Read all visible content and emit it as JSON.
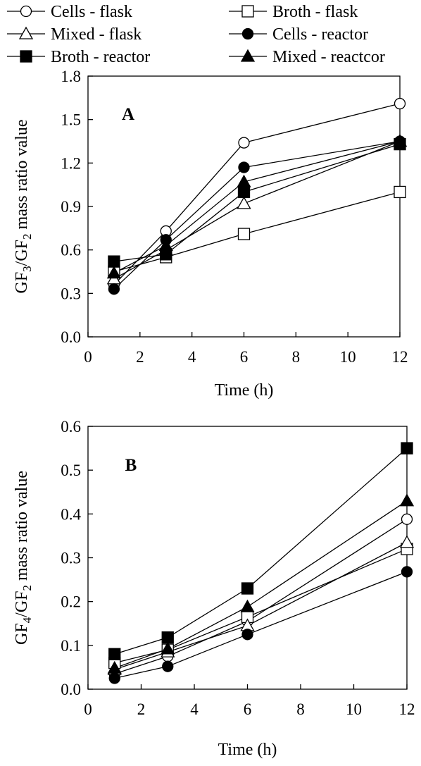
{
  "legend": {
    "entries": [
      {
        "label": "Cells - flask",
        "marker": "circle",
        "filled": false
      },
      {
        "label": "Broth - flask",
        "marker": "square",
        "filled": false
      },
      {
        "label": "Mixed - flask",
        "marker": "triangle",
        "filled": false
      },
      {
        "label": "Cells - reactor",
        "marker": "circle",
        "filled": true
      },
      {
        "label": "Broth - reactor",
        "marker": "square",
        "filled": true
      },
      {
        "label": "Mixed - reactcor",
        "marker": "triangle",
        "filled": true
      }
    ]
  },
  "chart_data": [
    {
      "type": "line",
      "panel_label": "A",
      "ylabel_parts": [
        "GF",
        "3",
        "/GF",
        "2",
        " mass ratio value"
      ],
      "xlabel": "Time (h)",
      "xlim": [
        0,
        12
      ],
      "ylim": [
        0,
        1.8
      ],
      "xticks": [
        0,
        2,
        4,
        6,
        8,
        10,
        12
      ],
      "xtick_labels": [
        "0",
        "2",
        "4",
        "6",
        "8",
        "10",
        "12"
      ],
      "yticks": [
        0,
        0.3,
        0.6,
        0.9,
        1.2,
        1.5,
        1.8
      ],
      "ytick_labels": [
        "0.0",
        "0.3",
        "0.6",
        "0.9",
        "1.2",
        "1.5",
        "1.8"
      ],
      "grid": false,
      "x": [
        1,
        3,
        6,
        12
      ],
      "series": [
        {
          "name": "Cells - flask",
          "values": [
            0.36,
            0.73,
            1.34,
            1.61
          ]
        },
        {
          "name": "Broth - flask",
          "values": [
            0.45,
            0.55,
            0.71,
            1.0
          ]
        },
        {
          "name": "Mixed - flask",
          "values": [
            0.4,
            0.6,
            0.92,
            1.35
          ]
        },
        {
          "name": "Cells - reactor",
          "values": [
            0.33,
            0.67,
            1.17,
            1.35
          ]
        },
        {
          "name": "Broth - reactor",
          "values": [
            0.52,
            0.57,
            1.0,
            1.33
          ]
        },
        {
          "name": "Mixed - reactcor",
          "values": [
            0.44,
            0.63,
            1.07,
            1.35
          ]
        }
      ]
    },
    {
      "type": "line",
      "panel_label": "B",
      "ylabel_parts": [
        "GF",
        "4",
        "/GF",
        "2",
        " mass ratio value"
      ],
      "xlabel": "Time (h)",
      "xlim": [
        0,
        12
      ],
      "ylim": [
        0,
        0.6
      ],
      "xticks": [
        0,
        2,
        4,
        6,
        8,
        10,
        12
      ],
      "xtick_labels": [
        "0",
        "2",
        "4",
        "6",
        "8",
        "10",
        "12"
      ],
      "yticks": [
        0,
        0.1,
        0.2,
        0.3,
        0.4,
        0.5,
        0.6
      ],
      "ytick_labels": [
        "0.0",
        "0.1",
        "0.2",
        "0.3",
        "0.4",
        "0.5",
        "0.6"
      ],
      "grid": false,
      "x": [
        1,
        3,
        6,
        12
      ],
      "series": [
        {
          "name": "Cells - flask",
          "values": [
            0.035,
            0.075,
            0.155,
            0.388
          ]
        },
        {
          "name": "Broth - flask",
          "values": [
            0.06,
            0.09,
            0.165,
            0.32
          ]
        },
        {
          "name": "Mixed - flask",
          "values": [
            0.045,
            0.085,
            0.145,
            0.335
          ]
        },
        {
          "name": "Cells - reactor",
          "values": [
            0.025,
            0.052,
            0.125,
            0.268
          ]
        },
        {
          "name": "Broth - reactor",
          "values": [
            0.08,
            0.118,
            0.23,
            0.55
          ]
        },
        {
          "name": "Mixed - reactcor",
          "values": [
            0.048,
            0.092,
            0.188,
            0.43
          ]
        }
      ]
    }
  ]
}
